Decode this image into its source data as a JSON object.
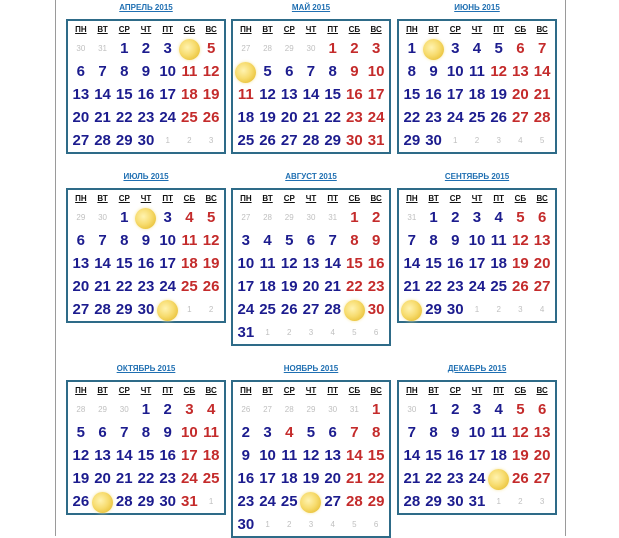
{
  "weekdays": [
    "ПН",
    "ВТ",
    "СР",
    "ЧТ",
    "ПТ",
    "СБ",
    "ВС"
  ],
  "colors": {
    "weekday": "#1c1c8e",
    "holiday": "#c42b2b",
    "other_month": "#c0c0c0",
    "title_link": "#1f6fb2",
    "border": "#2e6b88"
  },
  "icons": {
    "full_moon": "full-moon-icon"
  },
  "months": [
    {
      "title": "АПРЕЛЬ 2015",
      "weeks": [
        [
          "o30",
          "o31",
          "w1",
          "w2",
          "w3",
          "m",
          "h5"
        ],
        [
          "w6",
          "w7",
          "w8",
          "w9",
          "w10",
          "h11",
          "h12"
        ],
        [
          "w13",
          "w14",
          "w15",
          "w16",
          "w17",
          "h18",
          "h19"
        ],
        [
          "w20",
          "w21",
          "w22",
          "w23",
          "w24",
          "h25",
          "h26"
        ],
        [
          "w27",
          "w28",
          "w29",
          "w30",
          "o1",
          "o2",
          "o3"
        ]
      ]
    },
    {
      "title": "МАЙ 2015",
      "weeks": [
        [
          "o27",
          "o28",
          "o29",
          "o30",
          "h1",
          "h2",
          "h3"
        ],
        [
          "m",
          "w5",
          "w6",
          "w7",
          "w8",
          "h9",
          "h10"
        ],
        [
          "h11",
          "w12",
          "w13",
          "w14",
          "w15",
          "h16",
          "h17"
        ],
        [
          "w18",
          "w19",
          "w20",
          "w21",
          "w22",
          "h23",
          "h24"
        ],
        [
          "w25",
          "w26",
          "w27",
          "w28",
          "w29",
          "h30",
          "h31"
        ]
      ]
    },
    {
      "title": "ИЮНЬ 2015",
      "weeks": [
        [
          "w1",
          "m",
          "w3",
          "w4",
          "w5",
          "h6",
          "h7"
        ],
        [
          "w8",
          "w9",
          "w10",
          "w11",
          "h12",
          "h13",
          "h14"
        ],
        [
          "w15",
          "w16",
          "w17",
          "w18",
          "w19",
          "h20",
          "h21"
        ],
        [
          "w22",
          "w23",
          "w24",
          "w25",
          "w26",
          "h27",
          "h28"
        ],
        [
          "w29",
          "w30",
          "o1",
          "o2",
          "o3",
          "o4",
          "o5"
        ]
      ]
    },
    {
      "title": "ИЮЛЬ 2015",
      "weeks": [
        [
          "o29",
          "o30",
          "w1",
          "m",
          "w3",
          "h4",
          "h5"
        ],
        [
          "w6",
          "w7",
          "w8",
          "w9",
          "w10",
          "h11",
          "h12"
        ],
        [
          "w13",
          "w14",
          "w15",
          "w16",
          "w17",
          "h18",
          "h19"
        ],
        [
          "w20",
          "w21",
          "w22",
          "w23",
          "w24",
          "h25",
          "h26"
        ],
        [
          "w27",
          "w28",
          "w29",
          "w30",
          "m",
          "o1",
          "o2"
        ]
      ]
    },
    {
      "title": "АВГУСТ 2015",
      "weeks": [
        [
          "o27",
          "o28",
          "o29",
          "o30",
          "o31",
          "h1",
          "h2"
        ],
        [
          "w3",
          "w4",
          "w5",
          "w6",
          "w7",
          "h8",
          "h9"
        ],
        [
          "w10",
          "w11",
          "w12",
          "w13",
          "w14",
          "h15",
          "h16"
        ],
        [
          "w17",
          "w18",
          "w19",
          "w20",
          "w21",
          "h22",
          "h23"
        ],
        [
          "w24",
          "w25",
          "w26",
          "w27",
          "w28",
          "m",
          "h30"
        ],
        [
          "w31",
          "o1",
          "o2",
          "o3",
          "o4",
          "o5",
          "o6"
        ]
      ]
    },
    {
      "title": "СЕНТЯБРЬ 2015",
      "weeks": [
        [
          "o31",
          "w1",
          "w2",
          "w3",
          "w4",
          "h5",
          "h6"
        ],
        [
          "w7",
          "w8",
          "w9",
          "w10",
          "w11",
          "h12",
          "h13"
        ],
        [
          "w14",
          "w15",
          "w16",
          "w17",
          "w18",
          "h19",
          "h20"
        ],
        [
          "w21",
          "w22",
          "w23",
          "w24",
          "w25",
          "h26",
          "h27"
        ],
        [
          "m",
          "w29",
          "w30",
          "o1",
          "o2",
          "o3",
          "o4"
        ]
      ]
    },
    {
      "title": "ОКТЯБРЬ 2015",
      "weeks": [
        [
          "o28",
          "o29",
          "o30",
          "w1",
          "w2",
          "h3",
          "h4"
        ],
        [
          "w5",
          "w6",
          "w7",
          "w8",
          "w9",
          "h10",
          "h11"
        ],
        [
          "w12",
          "w13",
          "w14",
          "w15",
          "w16",
          "h17",
          "h18"
        ],
        [
          "w19",
          "w20",
          "w21",
          "w22",
          "w23",
          "h24",
          "h25"
        ],
        [
          "w26",
          "m",
          "w28",
          "w29",
          "w30",
          "h31",
          "o1"
        ]
      ]
    },
    {
      "title": "НОЯБРЬ 2015",
      "weeks": [
        [
          "o26",
          "o27",
          "o28",
          "o29",
          "o30",
          "o31",
          "h1"
        ],
        [
          "w2",
          "w3",
          "h4",
          "w5",
          "w6",
          "h7",
          "h8"
        ],
        [
          "w9",
          "w10",
          "w11",
          "w12",
          "w13",
          "h14",
          "h15"
        ],
        [
          "w16",
          "w17",
          "w18",
          "w19",
          "w20",
          "h21",
          "h22"
        ],
        [
          "w23",
          "w24",
          "w25",
          "m",
          "w27",
          "h28",
          "h29"
        ],
        [
          "w30",
          "o1",
          "o2",
          "o3",
          "o4",
          "o5",
          "o6"
        ]
      ]
    },
    {
      "title": "ДЕКАБРЬ 2015",
      "weeks": [
        [
          "o30",
          "w1",
          "w2",
          "w3",
          "w4",
          "h5",
          "h6"
        ],
        [
          "w7",
          "w8",
          "w9",
          "w10",
          "w11",
          "h12",
          "h13"
        ],
        [
          "w14",
          "w15",
          "w16",
          "w17",
          "w18",
          "h19",
          "h20"
        ],
        [
          "w21",
          "w22",
          "w23",
          "w24",
          "m",
          "h26",
          "h27"
        ],
        [
          "w28",
          "w29",
          "w30",
          "w31",
          "o1",
          "o2",
          "o3"
        ]
      ]
    }
  ]
}
